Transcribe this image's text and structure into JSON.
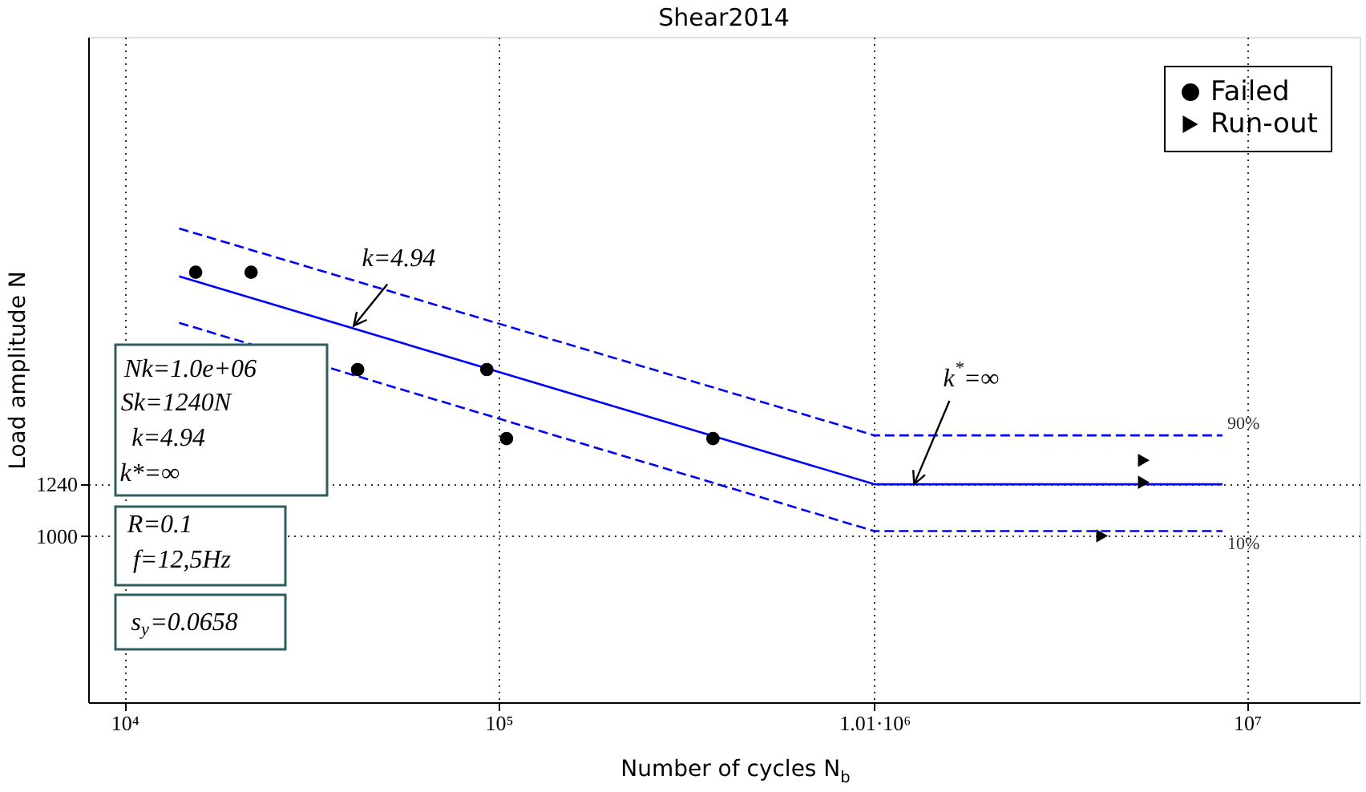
{
  "chart_data": {
    "type": "scatter",
    "title": "Shear2014",
    "xlabel": "Number of cycles N$_{b}$",
    "ylabel": "Load amplitude N",
    "log": "xy",
    "xlim": [
      8000,
      20000000
    ],
    "ylim": [
      500,
      8000
    ],
    "xticks": [
      {
        "value": 10000,
        "label": "10⁴"
      },
      {
        "value": 100000,
        "label": "10⁵"
      },
      {
        "value": 1010000,
        "label": "1.01·10⁶"
      },
      {
        "value": 10000000,
        "label": "10⁷"
      }
    ],
    "yticks": [
      1000,
      1240
    ],
    "grid": true,
    "legend": "top right",
    "series": [
      {
        "name": "Failed",
        "type": "scatter",
        "marker": "circle",
        "color": "#000000",
        "x": [
          15500,
          21800,
          42000,
          93000,
          105000,
          374000
        ],
        "values": [
          3000,
          3000,
          2000,
          2000,
          1500,
          1500
        ]
      },
      {
        "name": "Run-out",
        "type": "scatter",
        "marker": "triangle",
        "color": "#000000",
        "x": [
          5300000,
          5300000,
          4100000
        ],
        "values": [
          1370,
          1250,
          1000
        ]
      },
      {
        "type": "line",
        "line_style": "solid",
        "color": "#0000ff",
        "x": [
          14000,
          1010000,
          8600000
        ],
        "values": [
          2950,
          1240,
          1240
        ]
      },
      {
        "name": "90%",
        "type": "line",
        "line_style": "dashed",
        "color": "#0000ff",
        "x": [
          14000,
          1010000,
          8600000
        ],
        "values": [
          3600,
          1520,
          1520
        ]
      },
      {
        "name": "10%",
        "type": "line",
        "line_style": "dashed",
        "color": "#0000ff",
        "x": [
          14000,
          1010000,
          8600000
        ],
        "values": [
          2430,
          1020,
          1020
        ]
      }
    ],
    "annotations": [
      {
        "text": "k=4.94",
        "x": 41000,
        "y": 2400
      },
      {
        "text": "k$^{*}$=∞",
        "x": 1290000,
        "y": 1240
      },
      "Nk=1.0e+06",
      "Sk=1240N",
      "k=4.94",
      "k*=∞",
      "R=0.1",
      "f=12,5Hz",
      "s$_{y}$=0.0658"
    ]
  }
}
